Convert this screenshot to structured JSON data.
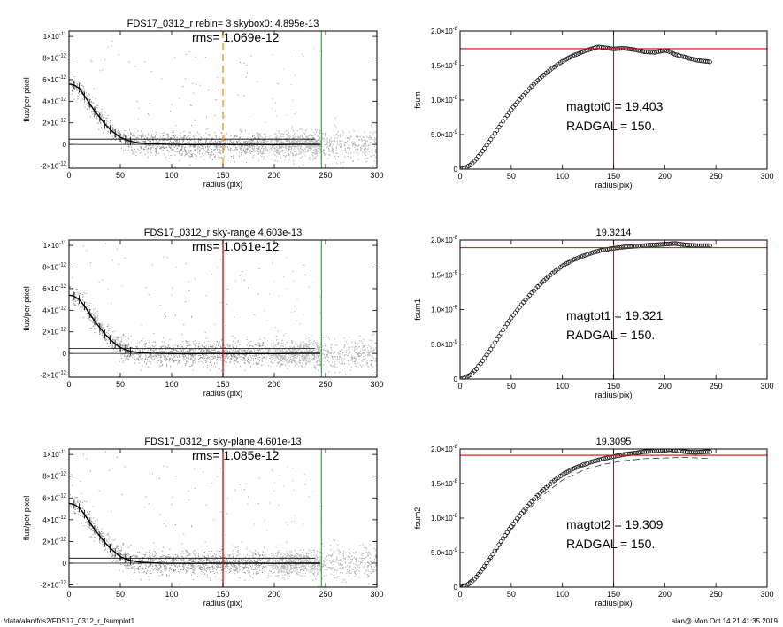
{
  "footer": {
    "path": "/data/alan/fds2/FDS17_0312_r_fsumplot1",
    "stamp": "alan@  Mon Oct 14 21:41:35 2019"
  },
  "colors": {
    "scatter": "#8a8a8a",
    "dense_scatter": "#b0b0b0",
    "orange_line": "#ff8c00",
    "red_line": "#e00000",
    "green_line": "#00dd00",
    "open_circle": "#000000"
  },
  "chart_data": [
    {
      "type": "scatter",
      "title": "FDS17_0312_r rebin= 3    skybox0:  4.895e-13",
      "annotation": "rms= 1.069e-12",
      "xlabel": "radius (pix)",
      "ylabel": "flux/per pixel",
      "xlim": [
        0,
        300
      ],
      "ylim": [
        -2.2e-12,
        1.05e-11
      ],
      "xticks": [
        0,
        50,
        100,
        150,
        200,
        250,
        300
      ],
      "xtick_labels": [
        "0",
        "50",
        "100",
        "150",
        "200",
        "250",
        "300"
      ],
      "yticks": [
        -2e-12,
        0,
        2e-12,
        4e-12,
        6e-12,
        8e-12,
        1e-11
      ],
      "ytick_labels": [
        {
          "m": "-2×10",
          "e": "-12"
        },
        {
          "m": "0",
          "e": ""
        },
        {
          "m": "2×10",
          "e": "-12"
        },
        {
          "m": "4×10",
          "e": "-12"
        },
        {
          "m": "6×10",
          "e": "-12"
        },
        {
          "m": "8×10",
          "e": "-12"
        },
        {
          "m": "1×10",
          "e": "-11"
        }
      ],
      "profile": {
        "x": [
          0,
          5,
          10,
          15,
          20,
          25,
          30,
          35,
          40,
          45,
          50,
          55,
          60,
          65,
          70,
          80,
          90,
          100,
          120,
          140,
          160,
          180,
          200,
          220,
          245
        ],
        "y": [
          5.6e-12,
          5.5e-12,
          5.2e-12,
          4.5e-12,
          3.8e-12,
          3.1e-12,
          2.5e-12,
          1.9e-12,
          1.4e-12,
          1e-12,
          6.5e-13,
          4.5e-13,
          3e-13,
          2e-13,
          1.2e-13,
          6e-14,
          3e-14,
          0,
          -2e-14,
          1e-14,
          -1e-14,
          0,
          -2e-14,
          0,
          0
        ]
      },
      "hlines": [
        4.895e-13,
        0
      ],
      "vlines": [
        {
          "x": 150,
          "color": "orange",
          "dashed": true
        },
        {
          "x": 246,
          "color": "green",
          "dashed": false
        }
      ],
      "scatter_spread": 1.2e-12
    },
    {
      "type": "scatter",
      "title": "FDS17_0312_r sky-range  4.603e-13",
      "annotation": "rms= 1.061e-12",
      "xlabel": "radius (pix)",
      "ylabel": "flux/per pixel",
      "xlim": [
        0,
        300
      ],
      "ylim": [
        -2.2e-12,
        1.05e-11
      ],
      "xticks": [
        0,
        50,
        100,
        150,
        200,
        250,
        300
      ],
      "xtick_labels": [
        "0",
        "50",
        "100",
        "150",
        "200",
        "250",
        "300"
      ],
      "yticks": [
        -2e-12,
        0,
        2e-12,
        4e-12,
        6e-12,
        8e-12,
        1e-11
      ],
      "ytick_labels": [
        {
          "m": "-2×10",
          "e": "-12"
        },
        {
          "m": "0",
          "e": ""
        },
        {
          "m": "2×10",
          "e": "-12"
        },
        {
          "m": "4×10",
          "e": "-12"
        },
        {
          "m": "6×10",
          "e": "-12"
        },
        {
          "m": "8×10",
          "e": "-12"
        },
        {
          "m": "1×10",
          "e": "-11"
        }
      ],
      "profile": {
        "x": [
          0,
          5,
          10,
          15,
          20,
          25,
          30,
          35,
          40,
          45,
          50,
          55,
          60,
          65,
          70,
          80,
          90,
          100,
          120,
          140,
          160,
          180,
          200,
          220,
          245
        ],
        "y": [
          5.4e-12,
          5.3e-12,
          5e-12,
          4.4e-12,
          3.7e-12,
          3e-12,
          2.4e-12,
          1.8e-12,
          1.3e-12,
          9e-13,
          5.5e-13,
          3.5e-13,
          2e-13,
          1.2e-13,
          6e-14,
          2e-14,
          0,
          -1e-14,
          -3e-14,
          0,
          -2e-14,
          -1e-14,
          -2e-14,
          0,
          0
        ]
      },
      "hlines": [
        4.603e-13,
        0
      ],
      "vlines": [
        {
          "x": 150,
          "color": "red",
          "dashed": false
        },
        {
          "x": 246,
          "color": "green",
          "dashed": false
        }
      ],
      "scatter_spread": 1.2e-12
    },
    {
      "type": "scatter",
      "title": "FDS17_0312_r sky-plane  4.601e-13",
      "annotation": "rms= 1.085e-12",
      "xlabel": "radius (pix)",
      "ylabel": "flux/per pixel",
      "xlim": [
        0,
        300
      ],
      "ylim": [
        -2.2e-12,
        1.05e-11
      ],
      "xticks": [
        0,
        50,
        100,
        150,
        200,
        250,
        300
      ],
      "xtick_labels": [
        "0",
        "50",
        "100",
        "150",
        "200",
        "250",
        "300"
      ],
      "yticks": [
        -2e-12,
        0,
        2e-12,
        4e-12,
        6e-12,
        8e-12,
        1e-11
      ],
      "ytick_labels": [
        {
          "m": "-2×10",
          "e": "-12"
        },
        {
          "m": "0",
          "e": ""
        },
        {
          "m": "2×10",
          "e": "-12"
        },
        {
          "m": "4×10",
          "e": "-12"
        },
        {
          "m": "6×10",
          "e": "-12"
        },
        {
          "m": "8×10",
          "e": "-12"
        },
        {
          "m": "1×10",
          "e": "-11"
        }
      ],
      "profile": {
        "x": [
          0,
          5,
          10,
          15,
          20,
          25,
          30,
          35,
          40,
          45,
          50,
          55,
          60,
          65,
          70,
          80,
          90,
          100,
          120,
          140,
          160,
          180,
          200,
          220,
          245
        ],
        "y": [
          5.5e-12,
          5.4e-12,
          5.1e-12,
          4.5e-12,
          3.8e-12,
          3.1e-12,
          2.5e-12,
          1.9e-12,
          1.4e-12,
          1e-12,
          6e-13,
          4e-13,
          2.5e-13,
          1.5e-13,
          8e-14,
          3e-14,
          0,
          -1e-14,
          -2e-14,
          0,
          -1e-14,
          0,
          -2e-14,
          0,
          0
        ]
      },
      "hlines": [
        4.601e-13,
        0
      ],
      "vlines": [
        {
          "x": 150,
          "color": "red",
          "dashed": false
        },
        {
          "x": 246,
          "color": "green",
          "dashed": false
        }
      ],
      "scatter_spread": 1.2e-12
    },
    {
      "type": "scatter",
      "title": "",
      "xlabel": "radius(pix)",
      "ylabel": "fsum",
      "xlim": [
        0,
        300
      ],
      "ylim": [
        0,
        2e-08
      ],
      "xticks": [
        0,
        50,
        100,
        150,
        200,
        250,
        300
      ],
      "xtick_labels": [
        "0",
        "50",
        "100",
        "150",
        "200",
        "250",
        "300"
      ],
      "yticks": [
        0,
        5e-09,
        1e-08,
        1.5e-08,
        2e-08
      ],
      "ytick_labels": [
        {
          "m": "0",
          "e": ""
        },
        {
          "m": "5.0×10",
          "e": "-9"
        },
        {
          "m": "1.0×10",
          "e": "-8"
        },
        {
          "m": "1.5×10",
          "e": "-8"
        },
        {
          "m": "2.0×10",
          "e": "-8"
        }
      ],
      "annotations": [
        "magtot0 =  19.403",
        "RADGAL =    150."
      ],
      "curve": {
        "x": [
          0,
          5,
          10,
          15,
          20,
          30,
          40,
          50,
          60,
          70,
          80,
          90,
          100,
          110,
          120,
          130,
          135,
          140,
          150,
          160,
          170,
          180,
          190,
          200,
          205,
          210,
          220,
          230,
          240,
          245
        ],
        "y": [
          0,
          1.5e-10,
          6e-10,
          1.3e-09,
          2.2e-09,
          4.3e-09,
          6.5e-09,
          8.6e-09,
          1.04e-08,
          1.2e-08,
          1.34e-08,
          1.46e-08,
          1.56e-08,
          1.64e-08,
          1.7e-08,
          1.75e-08,
          1.77e-08,
          1.76e-08,
          1.74e-08,
          1.75e-08,
          1.73e-08,
          1.7e-08,
          1.69e-08,
          1.72e-08,
          1.7e-08,
          1.66e-08,
          1.62e-08,
          1.58e-08,
          1.56e-08,
          1.55e-08
        ]
      },
      "hline": 1.745e-08,
      "vline": 150,
      "dashed_curve": null
    },
    {
      "type": "scatter",
      "title": "19.3214",
      "xlabel": "radius(pix)",
      "ylabel": "fsum1",
      "xlim": [
        0,
        300
      ],
      "ylim": [
        0,
        2e-08
      ],
      "xticks": [
        0,
        50,
        100,
        150,
        200,
        250,
        300
      ],
      "xtick_labels": [
        "0",
        "50",
        "100",
        "150",
        "200",
        "250",
        "300"
      ],
      "yticks": [
        0,
        5e-09,
        1e-08,
        1.5e-08,
        2e-08
      ],
      "ytick_labels": [
        {
          "m": "0",
          "e": ""
        },
        {
          "m": "5.0×10",
          "e": "-9"
        },
        {
          "m": "1.0×10",
          "e": "-8"
        },
        {
          "m": "1.5×10",
          "e": "-8"
        },
        {
          "m": "2.0×10",
          "e": "-8"
        }
      ],
      "annotations": [
        "magtot1 =  19.321",
        "RADGAL =    150."
      ],
      "curve": {
        "x": [
          0,
          5,
          10,
          15,
          20,
          30,
          40,
          50,
          60,
          70,
          80,
          90,
          100,
          110,
          120,
          130,
          140,
          150,
          160,
          170,
          180,
          190,
          200,
          210,
          220,
          230,
          240,
          245
        ],
        "y": [
          0,
          1.5e-10,
          6e-10,
          1.3e-09,
          2.2e-09,
          4.3e-09,
          6.6e-09,
          8.8e-09,
          1.07e-08,
          1.24e-08,
          1.39e-08,
          1.52e-08,
          1.63e-08,
          1.71e-08,
          1.77e-08,
          1.82e-08,
          1.86e-08,
          1.88e-08,
          1.9e-08,
          1.91e-08,
          1.92e-08,
          1.93e-08,
          1.94e-08,
          1.95e-08,
          1.93e-08,
          1.92e-08,
          1.92e-08,
          1.92e-08
        ]
      },
      "hline": 1.89e-08,
      "vline": 150,
      "dashed_curve": null
    },
    {
      "type": "scatter",
      "title": "19.3095",
      "xlabel": "radius(pix)",
      "ylabel": "fsum2",
      "xlim": [
        0,
        300
      ],
      "ylim": [
        0,
        2e-08
      ],
      "xticks": [
        0,
        50,
        100,
        150,
        200,
        250,
        300
      ],
      "xtick_labels": [
        "0",
        "50",
        "100",
        "150",
        "200",
        "250",
        "300"
      ],
      "yticks": [
        0,
        5e-09,
        1e-08,
        1.5e-08,
        2e-08
      ],
      "ytick_labels": [
        {
          "m": "0",
          "e": ""
        },
        {
          "m": "5.0×10",
          "e": "-9"
        },
        {
          "m": "1.0×10",
          "e": "-8"
        },
        {
          "m": "1.5×10",
          "e": "-8"
        },
        {
          "m": "2.0×10",
          "e": "-8"
        }
      ],
      "annotations": [
        "magtot2 =  19.309",
        "RADGAL =    150."
      ],
      "curve": {
        "x": [
          0,
          5,
          10,
          15,
          20,
          30,
          40,
          50,
          60,
          70,
          80,
          90,
          100,
          110,
          120,
          130,
          140,
          150,
          160,
          170,
          180,
          190,
          200,
          205,
          210,
          220,
          230,
          240,
          245
        ],
        "y": [
          0,
          1.5e-10,
          6e-10,
          1.3e-09,
          2.2e-09,
          4.3e-09,
          6.6e-09,
          8.8e-09,
          1.07e-08,
          1.24e-08,
          1.39e-08,
          1.52e-08,
          1.63e-08,
          1.71e-08,
          1.77e-08,
          1.82e-08,
          1.86e-08,
          1.89e-08,
          1.92e-08,
          1.94e-08,
          1.96e-08,
          1.97e-08,
          1.98e-08,
          1.99e-08,
          1.98e-08,
          1.96e-08,
          1.95e-08,
          1.96e-08,
          1.96e-08
        ]
      },
      "hline": 1.91e-08,
      "vline": 150,
      "dashed_curve": {
        "x": [
          0,
          20,
          40,
          60,
          80,
          100,
          120,
          140,
          160,
          180,
          200,
          220,
          245
        ],
        "y": [
          0,
          2.1e-09,
          6.3e-09,
          1.02e-08,
          1.32e-08,
          1.55e-08,
          1.69e-08,
          1.78e-08,
          1.83e-08,
          1.86e-08,
          1.87e-08,
          1.88e-08,
          1.86e-08
        ]
      }
    }
  ]
}
